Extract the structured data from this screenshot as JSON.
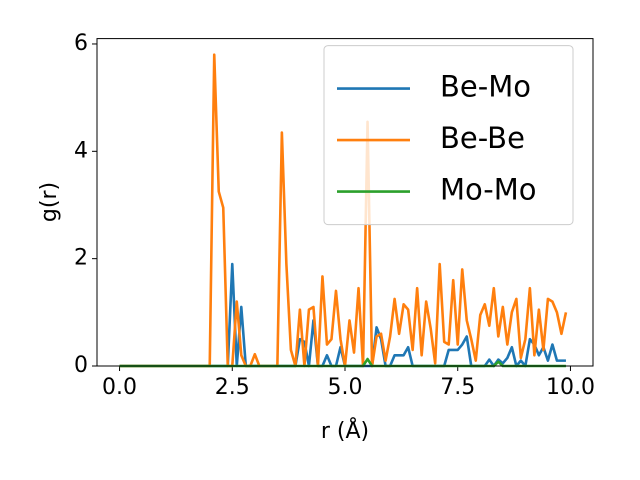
{
  "chart_data": {
    "type": "line",
    "xlabel": "r (Å)",
    "ylabel": "g(r)",
    "x": [
      0,
      0.1,
      0.2,
      0.3,
      0.4,
      0.5,
      0.6,
      0.7,
      0.8,
      0.9,
      1,
      1.1,
      1.2,
      1.3,
      1.4,
      1.5,
      1.6,
      1.7,
      1.8,
      1.9,
      2,
      2.1,
      2.2,
      2.3,
      2.4,
      2.5,
      2.6,
      2.7,
      2.8,
      2.9,
      3,
      3.1,
      3.2,
      3.3,
      3.4,
      3.5,
      3.6,
      3.7,
      3.8,
      3.9,
      4,
      4.1,
      4.2,
      4.3,
      4.4,
      4.5,
      4.6,
      4.7,
      4.8,
      4.9,
      5,
      5.1,
      5.2,
      5.3,
      5.4,
      5.5,
      5.6,
      5.7,
      5.8,
      5.9,
      6,
      6.1,
      6.2,
      6.3,
      6.4,
      6.5,
      6.6,
      6.7,
      6.8,
      6.9,
      7,
      7.1,
      7.2,
      7.3,
      7.4,
      7.5,
      7.6,
      7.7,
      7.8,
      7.9,
      8,
      8.1,
      8.2,
      8.3,
      8.4,
      8.5,
      8.6,
      8.7,
      8.8,
      8.9,
      9,
      9.1,
      9.2,
      9.3,
      9.4,
      9.5,
      9.6,
      9.7,
      9.8,
      9.9
    ],
    "series": [
      {
        "name": "Be-Mo",
        "color": "#1f77b4",
        "values": [
          0,
          0,
          0,
          0,
          0,
          0,
          0,
          0,
          0,
          0,
          0,
          0,
          0,
          0,
          0,
          0,
          0,
          0,
          0,
          0,
          0,
          0,
          0,
          0,
          0,
          1.9,
          0,
          1.1,
          0,
          0,
          0,
          0,
          0,
          0,
          0,
          0,
          0,
          0,
          0,
          0,
          0.5,
          0.45,
          0,
          0.85,
          0,
          0,
          0.2,
          0,
          0,
          0.35,
          0,
          0,
          0,
          0,
          0,
          0,
          0,
          0.72,
          0.5,
          0,
          0,
          0.2,
          0.2,
          0.2,
          0.35,
          0,
          0,
          0,
          0,
          0,
          0,
          0,
          0,
          0.3,
          0.3,
          0.3,
          0.4,
          0.55,
          0,
          0,
          0,
          0,
          0.12,
          0,
          0.12,
          0.05,
          0.15,
          0.35,
          0,
          0.1,
          0,
          0.5,
          0.4,
          0.2,
          0.35,
          0.1,
          0.4,
          0.1,
          0.1,
          0.1
        ]
      },
      {
        "name": "Be-Be",
        "color": "#ff7f0e",
        "values": [
          0,
          0,
          0,
          0,
          0,
          0,
          0,
          0,
          0,
          0,
          0,
          0,
          0,
          0,
          0,
          0,
          0,
          0,
          0,
          0,
          0,
          5.8,
          3.25,
          2.95,
          0,
          0,
          1.2,
          0.2,
          0,
          0,
          0.22,
          0,
          0,
          0,
          0,
          0,
          4.35,
          1.9,
          0.3,
          0,
          1.05,
          0,
          1.05,
          1.1,
          0,
          1.67,
          0.4,
          0.5,
          1.4,
          0.5,
          0,
          0.85,
          0.25,
          1.45,
          0,
          4.55,
          0,
          0.55,
          0.6,
          0.1,
          0.55,
          1.25,
          0.6,
          1.15,
          1.05,
          0.3,
          1.45,
          0.2,
          1.2,
          0.7,
          0.05,
          1.9,
          0.45,
          0.4,
          1.6,
          0.4,
          1.8,
          0.85,
          0.5,
          0.1,
          0.95,
          1.15,
          0.75,
          1.45,
          0.55,
          1.1,
          0.4,
          1.0,
          1.25,
          0.15,
          0.5,
          1.45,
          0.2,
          1.05,
          0.3,
          1.25,
          1.2,
          1.0,
          0.6,
          1.0
        ]
      },
      {
        "name": "Mo-Mo",
        "color": "#2ca02c",
        "values": [
          0,
          0,
          0,
          0,
          0,
          0,
          0,
          0,
          0,
          0,
          0,
          0,
          0,
          0,
          0,
          0,
          0,
          0,
          0,
          0,
          0,
          0,
          0,
          0,
          0,
          0,
          0,
          0,
          0,
          0,
          0,
          0,
          0,
          0,
          0,
          0,
          0,
          0,
          0,
          0,
          0,
          0,
          0,
          0,
          0,
          0,
          0,
          0,
          0,
          0,
          0,
          0,
          0,
          0,
          0,
          0.13,
          0,
          0,
          0,
          0,
          0,
          0,
          0,
          0,
          0,
          0,
          0,
          0,
          0,
          0,
          0,
          0,
          0,
          0,
          0,
          0,
          0,
          0,
          0,
          0,
          0,
          0,
          0,
          0,
          0.08,
          0,
          0,
          0,
          0,
          0,
          0,
          0,
          0,
          0,
          0,
          0,
          0,
          0,
          0,
          0
        ]
      }
    ],
    "xlim": [
      -0.5,
      10.5
    ],
    "ylim": [
      0,
      6.1
    ],
    "xticks": [
      {
        "value": 0,
        "label": "0.0"
      },
      2.5,
      {
        "value": 5,
        "label": "5.0"
      },
      7.5,
      {
        "value": 10,
        "label": "10.0"
      }
    ],
    "yticks": [
      0,
      2,
      4,
      6
    ],
    "legend": "upper right",
    "grid": false
  }
}
